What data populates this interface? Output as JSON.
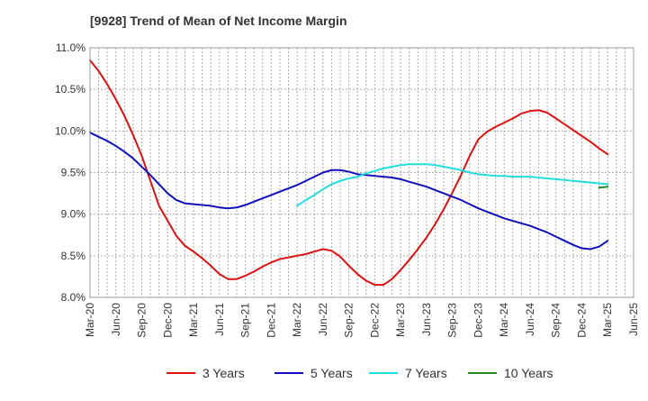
{
  "chart_data": {
    "type": "line",
    "title": "[9928]  Trend of Mean of Net Income Margin",
    "xlabel": "",
    "ylabel": "",
    "ylim": [
      8.0,
      11.0
    ],
    "yticks": [
      "8.0%",
      "8.5%",
      "9.0%",
      "9.5%",
      "10.0%",
      "10.5%",
      "11.0%"
    ],
    "xticks": [
      "Mar-20",
      "Jun-20",
      "Sep-20",
      "Dec-20",
      "Mar-21",
      "Jun-21",
      "Sep-21",
      "Dec-21",
      "Mar-22",
      "Jun-22",
      "Sep-22",
      "Dec-22",
      "Mar-23",
      "Jun-23",
      "Sep-23",
      "Dec-23",
      "Mar-24",
      "Jun-24",
      "Sep-24",
      "Dec-24",
      "Mar-25",
      "Jun-25"
    ],
    "grid": true,
    "legend": "bottom",
    "series": [
      {
        "name": "3 Years",
        "color": "#dd1111",
        "points": [
          [
            "Mar-20",
            10.85
          ],
          [
            "Apr-20",
            10.72
          ],
          [
            "May-20",
            10.56
          ],
          [
            "Jun-20",
            10.38
          ],
          [
            "Jul-20",
            10.18
          ],
          [
            "Aug-20",
            9.95
          ],
          [
            "Sep-20",
            9.7
          ],
          [
            "Oct-20",
            9.4
          ],
          [
            "Nov-20",
            9.1
          ],
          [
            "Dec-20",
            8.92
          ],
          [
            "Jan-21",
            8.74
          ],
          [
            "Feb-21",
            8.62
          ],
          [
            "Mar-21",
            8.55
          ],
          [
            "Apr-21",
            8.47
          ],
          [
            "May-21",
            8.38
          ],
          [
            "Jun-21",
            8.28
          ],
          [
            "Jul-21",
            8.22
          ],
          [
            "Aug-21",
            8.22
          ],
          [
            "Sep-21",
            8.26
          ],
          [
            "Oct-21",
            8.31
          ],
          [
            "Nov-21",
            8.37
          ],
          [
            "Dec-21",
            8.42
          ],
          [
            "Jan-22",
            8.46
          ],
          [
            "Feb-22",
            8.48
          ],
          [
            "Mar-22",
            8.5
          ],
          [
            "Apr-22",
            8.52
          ],
          [
            "May-22",
            8.55
          ],
          [
            "Jun-22",
            8.58
          ],
          [
            "Jul-22",
            8.56
          ],
          [
            "Aug-22",
            8.49
          ],
          [
            "Sep-22",
            8.38
          ],
          [
            "Oct-22",
            8.28
          ],
          [
            "Nov-22",
            8.2
          ],
          [
            "Dec-22",
            8.15
          ],
          [
            "Jan-23",
            8.15
          ],
          [
            "Feb-23",
            8.22
          ],
          [
            "Mar-23",
            8.33
          ],
          [
            "Apr-23",
            8.45
          ],
          [
            "May-23",
            8.58
          ],
          [
            "Jun-23",
            8.72
          ],
          [
            "Jul-23",
            8.88
          ],
          [
            "Aug-23",
            9.06
          ],
          [
            "Sep-23",
            9.26
          ],
          [
            "Oct-23",
            9.47
          ],
          [
            "Nov-23",
            9.7
          ],
          [
            "Dec-23",
            9.9
          ],
          [
            "Jan-24",
            9.99
          ],
          [
            "Feb-24",
            10.05
          ],
          [
            "Mar-24",
            10.1
          ],
          [
            "Apr-24",
            10.15
          ],
          [
            "May-24",
            10.21
          ],
          [
            "Jun-24",
            10.24
          ],
          [
            "Jul-24",
            10.25
          ],
          [
            "Aug-24",
            10.22
          ],
          [
            "Sep-24",
            10.15
          ],
          [
            "Oct-24",
            10.08
          ],
          [
            "Nov-24",
            10.01
          ],
          [
            "Dec-24",
            9.94
          ],
          [
            "Jan-25",
            9.87
          ],
          [
            "Feb-25",
            9.79
          ],
          [
            "Mar-25",
            9.72
          ]
        ]
      },
      {
        "name": "5 Years",
        "color": "#1111bb",
        "points": [
          [
            "Mar-20",
            9.98
          ],
          [
            "Apr-20",
            9.93
          ],
          [
            "May-20",
            9.88
          ],
          [
            "Jun-20",
            9.82
          ],
          [
            "Jul-20",
            9.75
          ],
          [
            "Aug-20",
            9.67
          ],
          [
            "Sep-20",
            9.57
          ],
          [
            "Oct-20",
            9.47
          ],
          [
            "Nov-20",
            9.36
          ],
          [
            "Dec-20",
            9.25
          ],
          [
            "Jan-21",
            9.17
          ],
          [
            "Feb-21",
            9.13
          ],
          [
            "Mar-21",
            9.12
          ],
          [
            "Apr-21",
            9.11
          ],
          [
            "May-21",
            9.1
          ],
          [
            "Jun-21",
            9.08
          ],
          [
            "Jul-21",
            9.07
          ],
          [
            "Aug-21",
            9.08
          ],
          [
            "Sep-21",
            9.11
          ],
          [
            "Oct-21",
            9.15
          ],
          [
            "Nov-21",
            9.19
          ],
          [
            "Dec-21",
            9.23
          ],
          [
            "Jan-22",
            9.27
          ],
          [
            "Feb-22",
            9.31
          ],
          [
            "Mar-22",
            9.35
          ],
          [
            "Apr-22",
            9.4
          ],
          [
            "May-22",
            9.45
          ],
          [
            "Jun-22",
            9.5
          ],
          [
            "Jul-22",
            9.53
          ],
          [
            "Aug-22",
            9.53
          ],
          [
            "Sep-22",
            9.51
          ],
          [
            "Oct-22",
            9.48
          ],
          [
            "Nov-22",
            9.47
          ],
          [
            "Dec-22",
            9.46
          ],
          [
            "Jan-23",
            9.45
          ],
          [
            "Feb-23",
            9.44
          ],
          [
            "Mar-23",
            9.42
          ],
          [
            "Apr-23",
            9.39
          ],
          [
            "May-23",
            9.36
          ],
          [
            "Jun-23",
            9.33
          ],
          [
            "Jul-23",
            9.29
          ],
          [
            "Aug-23",
            9.25
          ],
          [
            "Sep-23",
            9.21
          ],
          [
            "Oct-23",
            9.17
          ],
          [
            "Nov-23",
            9.12
          ],
          [
            "Dec-23",
            9.07
          ],
          [
            "Jan-24",
            9.03
          ],
          [
            "Feb-24",
            8.99
          ],
          [
            "Mar-24",
            8.95
          ],
          [
            "Apr-24",
            8.92
          ],
          [
            "May-24",
            8.89
          ],
          [
            "Jun-24",
            8.86
          ],
          [
            "Jul-24",
            8.82
          ],
          [
            "Aug-24",
            8.78
          ],
          [
            "Sep-24",
            8.73
          ],
          [
            "Oct-24",
            8.68
          ],
          [
            "Nov-24",
            8.63
          ],
          [
            "Dec-24",
            8.59
          ],
          [
            "Jan-25",
            8.58
          ],
          [
            "Feb-25",
            8.61
          ],
          [
            "Mar-25",
            8.68
          ]
        ]
      },
      {
        "name": "7 Years",
        "color": "#22dddd",
        "points": [
          [
            "Mar-22",
            9.1
          ],
          [
            "Apr-22",
            9.17
          ],
          [
            "May-22",
            9.23
          ],
          [
            "Jun-22",
            9.3
          ],
          [
            "Jul-22",
            9.36
          ],
          [
            "Aug-22",
            9.4
          ],
          [
            "Sep-22",
            9.43
          ],
          [
            "Oct-22",
            9.45
          ],
          [
            "Nov-22",
            9.49
          ],
          [
            "Dec-22",
            9.52
          ],
          [
            "Jan-23",
            9.55
          ],
          [
            "Feb-23",
            9.57
          ],
          [
            "Mar-23",
            9.59
          ],
          [
            "Apr-23",
            9.6
          ],
          [
            "May-23",
            9.6
          ],
          [
            "Jun-23",
            9.6
          ],
          [
            "Jul-23",
            9.59
          ],
          [
            "Aug-23",
            9.57
          ],
          [
            "Sep-23",
            9.55
          ],
          [
            "Oct-23",
            9.53
          ],
          [
            "Nov-23",
            9.5
          ],
          [
            "Dec-23",
            9.48
          ],
          [
            "Jan-24",
            9.47
          ],
          [
            "Feb-24",
            9.46
          ],
          [
            "Mar-24",
            9.46
          ],
          [
            "Apr-24",
            9.45
          ],
          [
            "May-24",
            9.45
          ],
          [
            "Jun-24",
            9.45
          ],
          [
            "Jul-24",
            9.44
          ],
          [
            "Aug-24",
            9.43
          ],
          [
            "Sep-24",
            9.42
          ],
          [
            "Oct-24",
            9.41
          ],
          [
            "Nov-24",
            9.4
          ],
          [
            "Dec-24",
            9.39
          ],
          [
            "Jan-25",
            9.38
          ],
          [
            "Feb-25",
            9.37
          ],
          [
            "Mar-25",
            9.36
          ]
        ]
      },
      {
        "name": "10 Years",
        "color": "#228822",
        "points": [
          [
            "Feb-25",
            9.32
          ],
          [
            "Mar-25",
            9.33
          ]
        ]
      }
    ]
  }
}
